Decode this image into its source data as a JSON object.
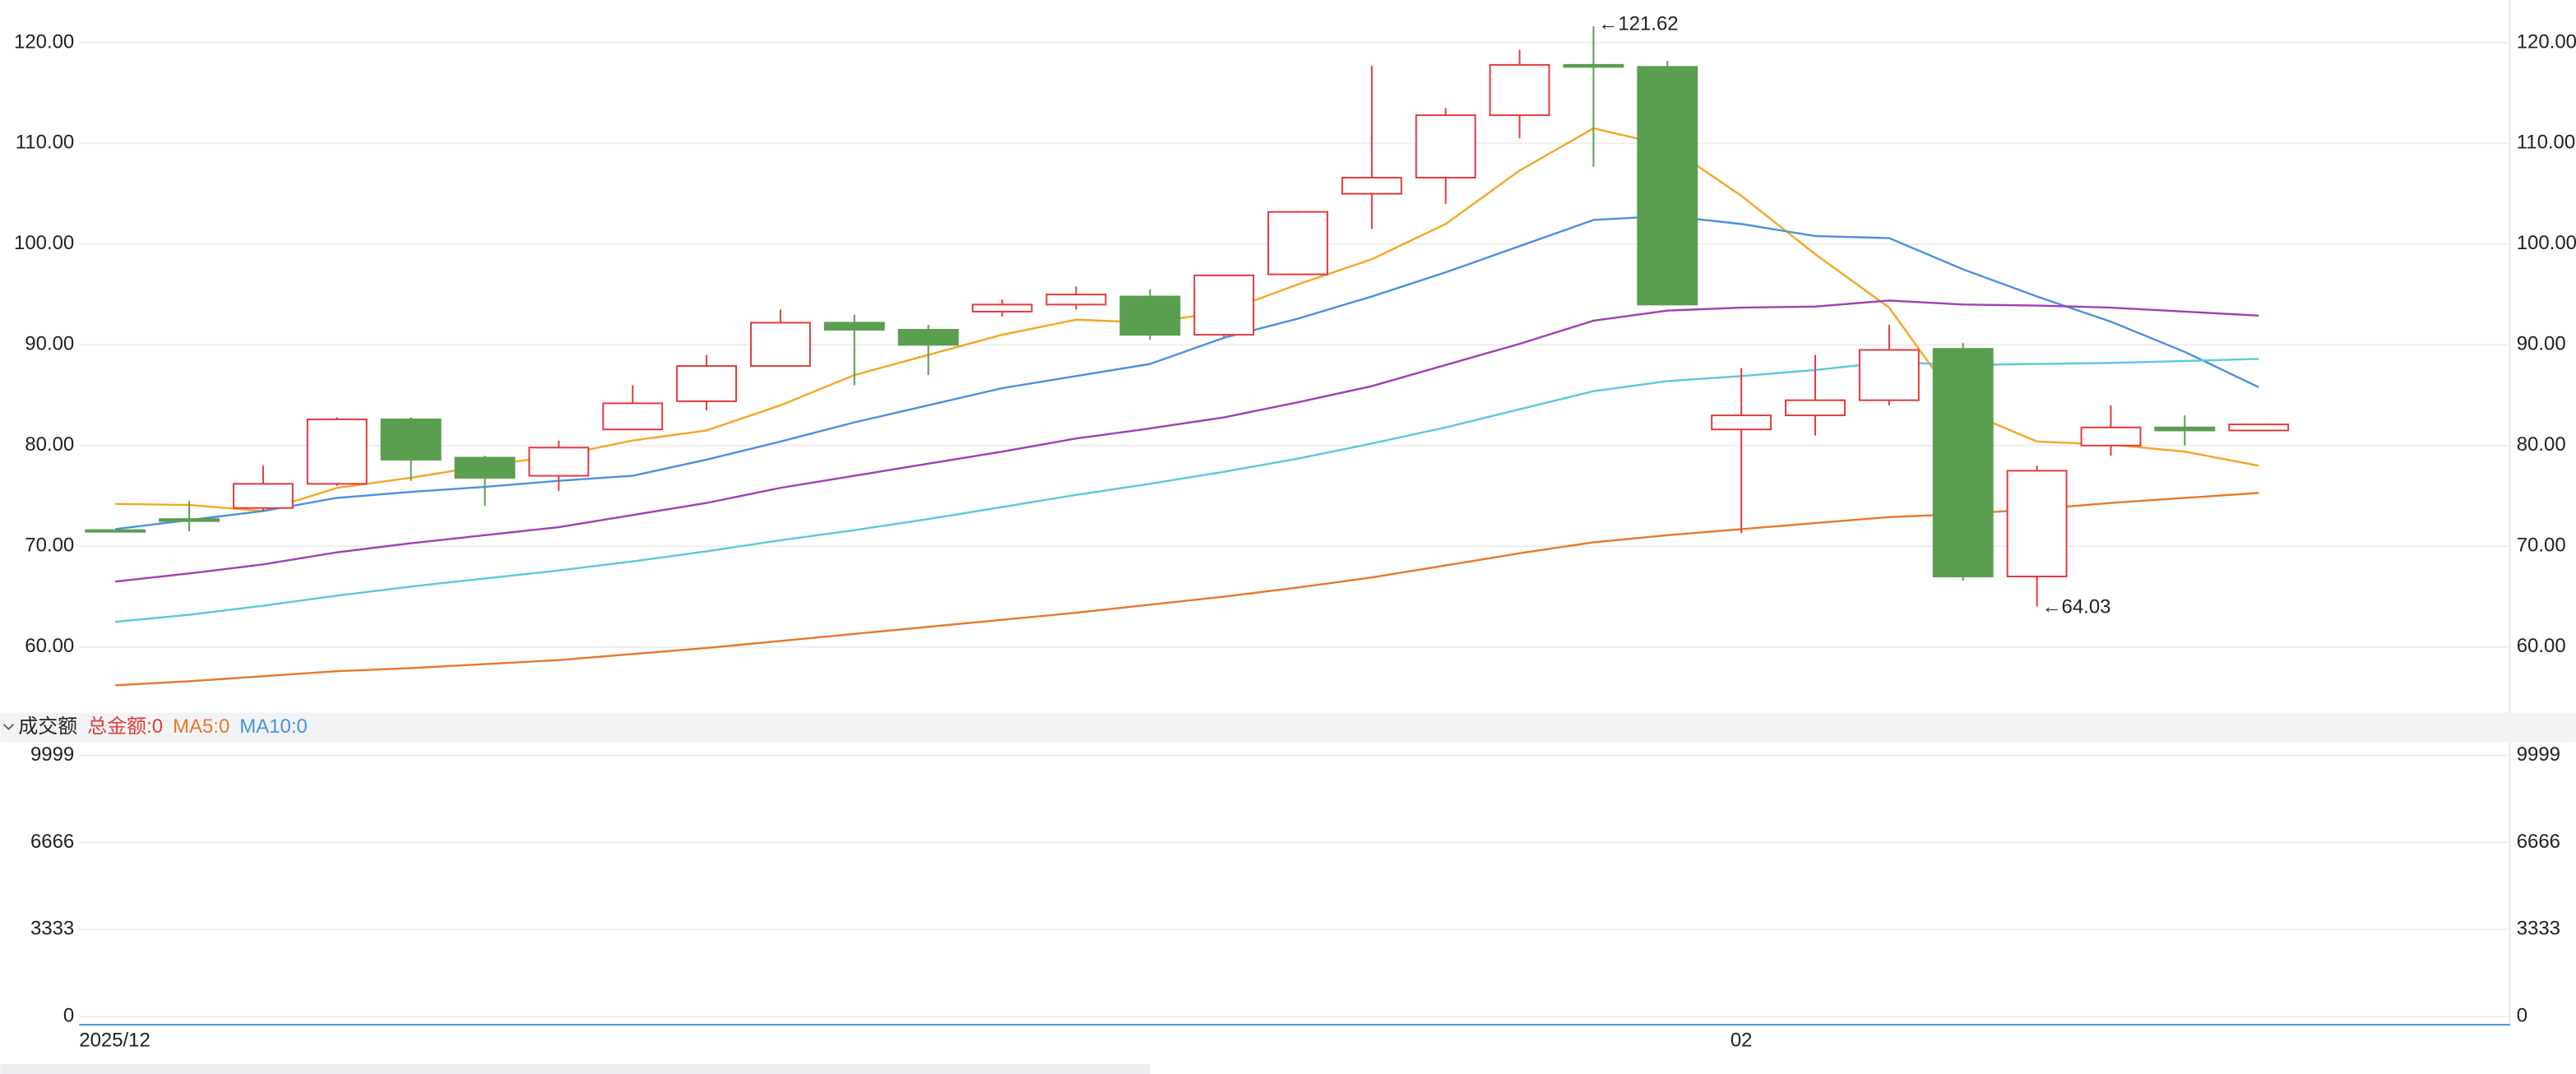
{
  "chart_data": [
    {
      "type": "candlestick",
      "categories": [
        "2025/12",
        null,
        null,
        null,
        null,
        null,
        null,
        null,
        null,
        null,
        null,
        null,
        null,
        null,
        null,
        null,
        null,
        null,
        null,
        null,
        null,
        null,
        "02",
        null,
        null,
        null,
        null,
        null,
        null,
        null
      ],
      "open": [
        71.6,
        72.7,
        73.8,
        76.2,
        82.6,
        78.8,
        77.0,
        81.6,
        84.4,
        87.9,
        92.2,
        91.5,
        93.3,
        94.0,
        94.8,
        91.0,
        97.0,
        105.0,
        106.6,
        112.8,
        117.8,
        117.6,
        81.6,
        83.0,
        84.5,
        89.6,
        67.0,
        80.0,
        81.8,
        81.5
      ],
      "high": [
        71.6,
        74.5,
        78.0,
        82.8,
        82.8,
        79.0,
        80.5,
        86.0,
        89.0,
        93.5,
        93.0,
        92.0,
        94.5,
        95.8,
        95.5,
        97.0,
        103.3,
        117.7,
        113.5,
        119.3,
        121.62,
        118.2,
        87.7,
        89.0,
        92.0,
        90.2,
        78.0,
        84.0,
        83.0,
        82.1
      ],
      "low": [
        71.5,
        71.5,
        73.5,
        76.0,
        76.5,
        74.0,
        75.5,
        81.6,
        83.5,
        87.9,
        86.0,
        87.0,
        92.8,
        93.5,
        90.5,
        90.8,
        97.0,
        101.5,
        104.0,
        110.5,
        107.7,
        94.0,
        71.3,
        81.0,
        84.0,
        66.6,
        64.03,
        79.0,
        80.0,
        81.5
      ],
      "close": [
        71.5,
        72.5,
        76.2,
        82.6,
        78.6,
        76.8,
        79.8,
        84.2,
        87.9,
        92.2,
        91.5,
        90.0,
        94.0,
        95.0,
        91.0,
        96.9,
        103.2,
        106.6,
        112.8,
        117.8,
        117.6,
        94.0,
        83.0,
        84.5,
        89.5,
        67.0,
        77.5,
        81.8,
        81.5,
        82.1
      ],
      "up_color": "#e23b3b",
      "down_color": "#5a9e4f",
      "series": [
        {
          "color": "#f5a623",
          "values": [
            74.2,
            74.1,
            73.5,
            75.8,
            76.8,
            78.0,
            79.0,
            80.5,
            81.5,
            84.0,
            87.0,
            89.0,
            91.0,
            92.5,
            92.2,
            93.3,
            96.0,
            98.5,
            102.0,
            107.3,
            111.5,
            109.8,
            104.8,
            99.0,
            93.7,
            83.5,
            80.4,
            80.1,
            79.4,
            78.0
          ]
        },
        {
          "color": "#4a90e2",
          "values": [
            71.7,
            72.6,
            73.5,
            74.8,
            75.4,
            75.9,
            76.5,
            77.0,
            78.6,
            80.4,
            82.3,
            84.0,
            85.7,
            86.9,
            88.1,
            90.7,
            92.6,
            94.8,
            97.2,
            99.8,
            102.4,
            102.8,
            102.0,
            100.8,
            100.6,
            97.5,
            94.8,
            92.3,
            89.3,
            85.8
          ]
        },
        {
          "color": "#a03fb5",
          "values": [
            66.5,
            67.3,
            68.2,
            69.4,
            70.3,
            71.1,
            71.9,
            73.1,
            74.3,
            75.8,
            77.0,
            78.2,
            79.4,
            80.7,
            81.7,
            82.8,
            84.3,
            85.9,
            88.0,
            90.1,
            92.4,
            93.4,
            93.7,
            93.8,
            94.4,
            94.0,
            93.9,
            93.7,
            93.3,
            92.9
          ]
        },
        {
          "color": "#5bc8dc",
          "values": [
            62.5,
            63.2,
            64.1,
            65.1,
            66.0,
            66.8,
            67.6,
            68.5,
            69.5,
            70.6,
            71.6,
            72.7,
            73.9,
            75.1,
            76.2,
            77.4,
            78.7,
            80.2,
            81.8,
            83.6,
            85.4,
            86.4,
            86.9,
            87.5,
            88.3,
            88.0,
            88.1,
            88.2,
            88.4,
            88.6
          ]
        },
        {
          "color": "#e8782a",
          "values": [
            56.2,
            56.6,
            57.1,
            57.6,
            57.9,
            58.3,
            58.7,
            59.3,
            59.9,
            60.6,
            61.3,
            62.0,
            62.7,
            63.4,
            64.2,
            65.0,
            65.9,
            66.9,
            68.1,
            69.3,
            70.4,
            71.1,
            71.7,
            72.3,
            72.9,
            73.2,
            73.7,
            74.3,
            74.8,
            75.3
          ]
        }
      ],
      "annotations": [
        "←121.62",
        "←64.03"
      ],
      "ylim": [
        53.8,
        124.24
      ],
      "yticks": [
        {
          "value": 60,
          "label": "60.00"
        },
        {
          "value": 70,
          "label": "70.00"
        },
        {
          "value": 80,
          "label": "80.00"
        },
        {
          "value": 90,
          "label": "90.00"
        },
        {
          "value": 100,
          "label": "100.00"
        },
        {
          "value": 110,
          "label": "110.00"
        },
        {
          "value": 120,
          "label": "120.00"
        }
      ],
      "grid": true
    },
    {
      "type": "volume",
      "title": "成交额",
      "legend": [
        {
          "text": "总金额:0",
          "color": "#e23b3b"
        },
        {
          "text": "MA5:0",
          "color": "#e8782a"
        },
        {
          "text": "MA10:0",
          "color": "#4a90e2"
        }
      ],
      "ylim": [
        0,
        9999
      ],
      "yticks": [
        0,
        3333,
        6666,
        9999
      ],
      "grid": true
    }
  ]
}
